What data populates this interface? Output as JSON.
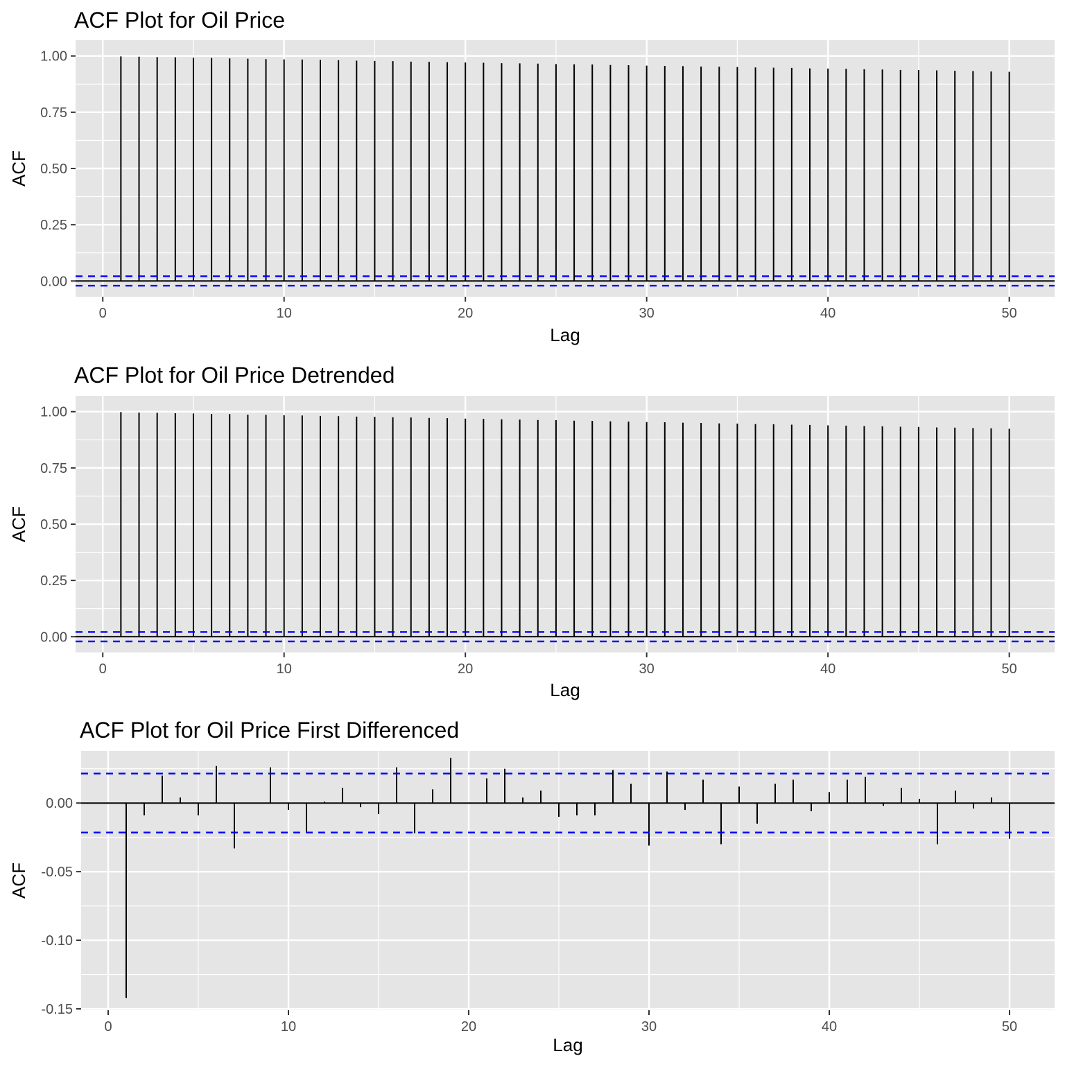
{
  "chart_data": [
    {
      "type": "bar",
      "title": "ACF Plot for Oil Price",
      "xlabel": "Lag",
      "ylabel": "ACF",
      "xlim": [
        -1.5,
        52.5
      ],
      "ylim": [
        -0.07,
        1.07
      ],
      "x_ticks": [
        0,
        10,
        20,
        30,
        40,
        50
      ],
      "y_ticks": [
        0.0,
        0.25,
        0.5,
        0.75,
        1.0
      ],
      "y_tick_labels": [
        "0.00",
        "0.25",
        "0.50",
        "0.75",
        "1.00"
      ],
      "grid": true,
      "confidence_bound": 0.021,
      "lags": [
        1,
        2,
        3,
        4,
        5,
        6,
        7,
        8,
        9,
        10,
        11,
        12,
        13,
        14,
        15,
        16,
        17,
        18,
        19,
        20,
        21,
        22,
        23,
        24,
        25,
        26,
        27,
        28,
        29,
        30,
        31,
        32,
        33,
        34,
        35,
        36,
        37,
        38,
        39,
        40,
        41,
        42,
        43,
        44,
        45,
        46,
        47,
        48,
        49,
        50
      ],
      "values": [
        0.998,
        0.997,
        0.995,
        0.994,
        0.992,
        0.991,
        0.989,
        0.988,
        0.986,
        0.985,
        0.984,
        0.982,
        0.981,
        0.979,
        0.978,
        0.977,
        0.975,
        0.974,
        0.972,
        0.971,
        0.97,
        0.968,
        0.967,
        0.966,
        0.964,
        0.963,
        0.962,
        0.96,
        0.959,
        0.957,
        0.956,
        0.955,
        0.953,
        0.952,
        0.951,
        0.949,
        0.948,
        0.947,
        0.945,
        0.944,
        0.943,
        0.941,
        0.94,
        0.938,
        0.937,
        0.936,
        0.934,
        0.933,
        0.931,
        0.93
      ]
    },
    {
      "type": "bar",
      "title": "ACF Plot for Oil Price Detrended",
      "xlabel": "Lag",
      "ylabel": "ACF",
      "xlim": [
        -1.5,
        52.5
      ],
      "ylim": [
        -0.07,
        1.07
      ],
      "x_ticks": [
        0,
        10,
        20,
        30,
        40,
        50
      ],
      "y_ticks": [
        0.0,
        0.25,
        0.5,
        0.75,
        1.0
      ],
      "y_tick_labels": [
        "0.00",
        "0.25",
        "0.50",
        "0.75",
        "1.00"
      ],
      "grid": true,
      "confidence_bound": 0.021,
      "lags": [
        1,
        2,
        3,
        4,
        5,
        6,
        7,
        8,
        9,
        10,
        11,
        12,
        13,
        14,
        15,
        16,
        17,
        18,
        19,
        20,
        21,
        22,
        23,
        24,
        25,
        26,
        27,
        28,
        29,
        30,
        31,
        32,
        33,
        34,
        35,
        36,
        37,
        38,
        39,
        40,
        41,
        42,
        43,
        44,
        45,
        46,
        47,
        48,
        49,
        50
      ],
      "values": [
        0.998,
        0.996,
        0.995,
        0.993,
        0.992,
        0.99,
        0.989,
        0.987,
        0.986,
        0.984,
        0.983,
        0.981,
        0.98,
        0.978,
        0.977,
        0.975,
        0.974,
        0.972,
        0.971,
        0.969,
        0.968,
        0.966,
        0.965,
        0.963,
        0.962,
        0.96,
        0.959,
        0.957,
        0.956,
        0.954,
        0.953,
        0.951,
        0.95,
        0.948,
        0.947,
        0.945,
        0.944,
        0.942,
        0.941,
        0.939,
        0.938,
        0.936,
        0.935,
        0.933,
        0.932,
        0.93,
        0.929,
        0.927,
        0.926,
        0.924
      ]
    },
    {
      "type": "bar",
      "title": "ACF Plot for Oil Price First Differenced",
      "xlabel": "Lag",
      "ylabel": "ACF",
      "xlim": [
        -1.5,
        52.5
      ],
      "ylim": [
        -0.151,
        0.038
      ],
      "x_ticks": [
        0,
        10,
        20,
        30,
        40,
        50
      ],
      "y_ticks": [
        -0.15,
        -0.1,
        -0.05,
        0.0
      ],
      "y_tick_labels": [
        "-0.15",
        "-0.10",
        "-0.05",
        "0.00"
      ],
      "grid": true,
      "confidence_bound": 0.0215,
      "lags": [
        1,
        2,
        3,
        4,
        5,
        6,
        7,
        8,
        9,
        10,
        11,
        12,
        13,
        14,
        15,
        16,
        17,
        18,
        19,
        20,
        21,
        22,
        23,
        24,
        25,
        26,
        27,
        28,
        29,
        30,
        31,
        32,
        33,
        34,
        35,
        36,
        37,
        38,
        39,
        40,
        41,
        42,
        43,
        44,
        45,
        46,
        47,
        48,
        49,
        50
      ],
      "values": [
        -0.142,
        -0.009,
        0.02,
        0.004,
        -0.009,
        0.027,
        -0.033,
        0.0,
        0.026,
        -0.005,
        -0.022,
        0.001,
        0.011,
        -0.003,
        -0.008,
        0.026,
        -0.022,
        0.01,
        0.033,
        0.0,
        0.018,
        0.025,
        0.004,
        0.009,
        -0.01,
        -0.009,
        -0.009,
        0.024,
        0.014,
        -0.031,
        0.023,
        -0.005,
        0.017,
        -0.03,
        0.012,
        -0.015,
        0.014,
        0.017,
        -0.006,
        0.008,
        0.017,
        0.019,
        -0.002,
        0.011,
        0.003,
        -0.03,
        0.009,
        -0.004,
        0.004,
        -0.026
      ]
    }
  ],
  "colors": {
    "panel_background": "#e5e5e5",
    "grid_line": "#ffffff",
    "bar": "#000000",
    "confidence_line": "#0000ff",
    "tick_text": "#4d4d4d"
  }
}
